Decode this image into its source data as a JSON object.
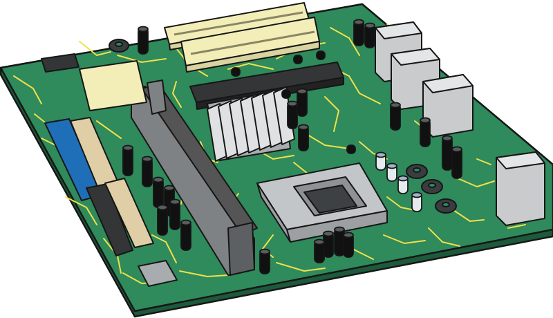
{
  "illustration": {
    "subject": "motherboard",
    "colors": {
      "board": "#2f8a5c",
      "board_edge": "#1c5a3b",
      "outline": "#161616",
      "trace": "#f2e04a",
      "silver": "#c9cbcd",
      "silver_dark": "#8e9194",
      "chipset_dark": "#333536",
      "cream": "#f3eeb8",
      "tan": "#e0cfa6",
      "blue": "#1f6fb8",
      "capacitor_black": "#111111",
      "capacitor_light": "#e3ebef",
      "ferrite": "#3a3d40"
    }
  }
}
